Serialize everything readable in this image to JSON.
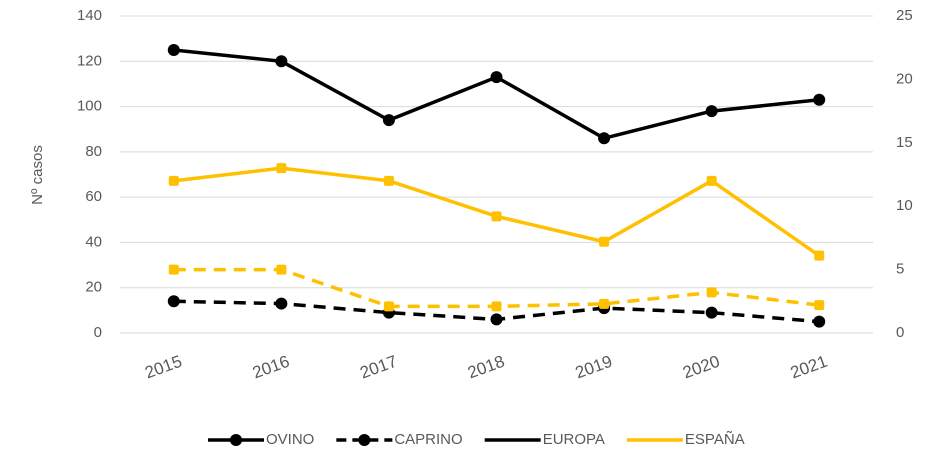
{
  "chart_data": {
    "type": "line",
    "y_label": "Nº casos",
    "categories": [
      "2015",
      "2016",
      "2017",
      "2018",
      "2019",
      "2020",
      "2021"
    ],
    "series": [
      {
        "color": "#000000",
        "dash": false,
        "marker": "circle",
        "values": [
          125,
          120,
          94,
          113,
          86,
          98,
          103
        ]
      },
      {
        "color": "#000000",
        "dash": true,
        "marker": "circle",
        "values": [
          14,
          13,
          9,
          6,
          11,
          9,
          5
        ]
      },
      {
        "color": "#ffc000",
        "dash": false,
        "marker": "square",
        "axis": "y2",
        "values": [
          12,
          13,
          12,
          9.2,
          7.2,
          12,
          6.1
        ]
      },
      {
        "color": "#ffc000",
        "dash": true,
        "marker": "square",
        "axis": "y2",
        "values": [
          5,
          5,
          2.1,
          2.1,
          2.3,
          3.2,
          2.2
        ]
      }
    ],
    "legend": [
      {
        "label": "OVINO",
        "color": "#000000",
        "dash": false,
        "marker": true
      },
      {
        "label": "CAPRINO",
        "color": "#000000",
        "dash": true,
        "marker": true
      },
      {
        "label": "EUROPA",
        "color": "#000000",
        "dash": false,
        "marker": false
      },
      {
        "label": "ESPAÑA",
        "color": "#ffc000",
        "dash": false,
        "marker": false
      }
    ],
    "ylim": [
      0,
      140
    ],
    "yticks": [
      0,
      20,
      40,
      60,
      80,
      100,
      120,
      140
    ],
    "y2lim": [
      0,
      25
    ],
    "y2ticks": [
      0,
      5,
      10,
      15,
      20,
      25
    ],
    "grid": true
  }
}
